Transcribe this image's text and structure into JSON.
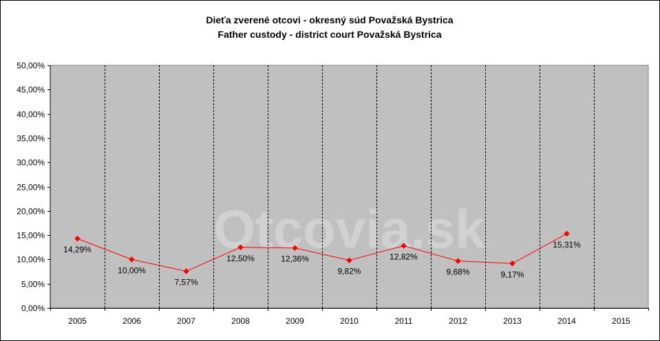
{
  "chart_data": {
    "type": "line",
    "title": "Dieťa zverené otcovi - okresný súd Považská Bystrica",
    "subtitle": "Father custody - district court Považská Bystrica",
    "watermark": "Otcovia.sk",
    "categories": [
      "2005",
      "2006",
      "2007",
      "2008",
      "2009",
      "2010",
      "2011",
      "2012",
      "2013",
      "2014",
      "2015"
    ],
    "series": [
      {
        "values": [
          14.29,
          10.0,
          7.57,
          12.5,
          12.36,
          9.82,
          12.82,
          9.68,
          9.17,
          15.31,
          null
        ],
        "labels": [
          "14,29%",
          "10,00%",
          "7,57%",
          "12,50%",
          "12,36%",
          "9,82%",
          "12,82%",
          "9,68%",
          "9,17%",
          "15,31%",
          ""
        ],
        "color": "#ff0000"
      }
    ],
    "ylim": [
      0,
      50
    ],
    "yticks": [
      {
        "value": 0,
        "label": "0,00%"
      },
      {
        "value": 5,
        "label": "5,00%"
      },
      {
        "value": 10,
        "label": "10,00%"
      },
      {
        "value": 15,
        "label": "15,00%"
      },
      {
        "value": 20,
        "label": "20,00%"
      },
      {
        "value": 25,
        "label": "25,00%"
      },
      {
        "value": 30,
        "label": "30,00%"
      },
      {
        "value": 35,
        "label": "35,00%"
      },
      {
        "value": 40,
        "label": "40,00%"
      },
      {
        "value": 45,
        "label": "45,00%"
      },
      {
        "value": 50,
        "label": "50,00%"
      }
    ],
    "grid": "vertical dashed lines between categories",
    "legend": "none",
    "colors": {
      "plot_background": "#c0c0c0",
      "line": "#ff0000",
      "marker": "#ff0000"
    }
  }
}
